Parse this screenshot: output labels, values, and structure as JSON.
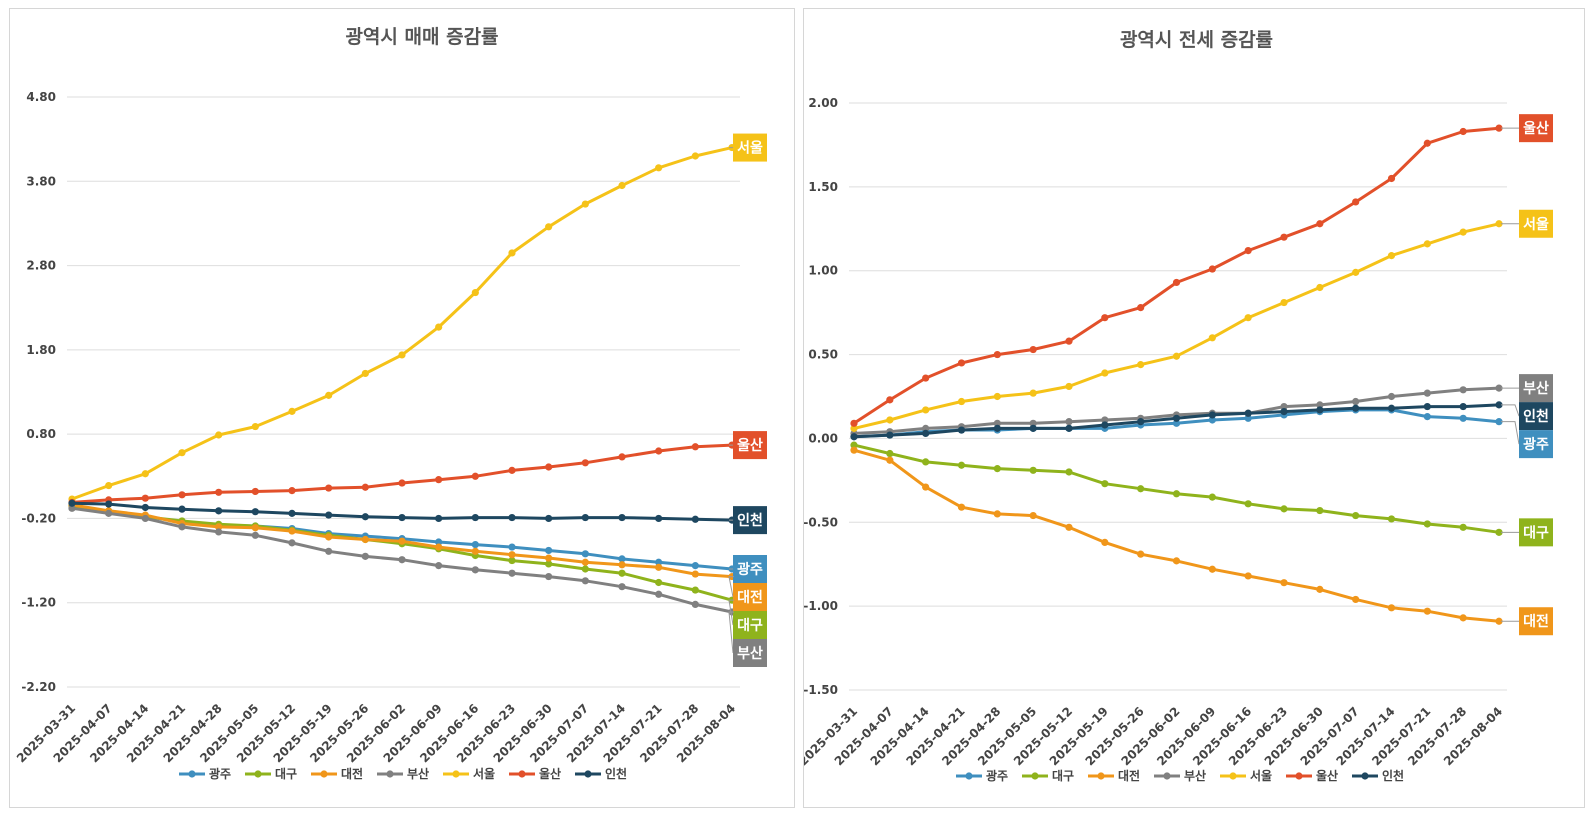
{
  "chart_data": [
    {
      "type": "line",
      "title": "광역시 매매 증감률",
      "xlabel": "",
      "ylabel": "",
      "ylim": [
        -2.2,
        5.4
      ],
      "yticks": [
        "4.80",
        "3.80",
        "2.80",
        "1.80",
        "0.80",
        "-0.20",
        "-1.20",
        "-2.20"
      ],
      "ytick_values": [
        4.8,
        3.8,
        2.8,
        1.8,
        0.8,
        -0.2,
        -1.2,
        -2.2
      ],
      "categories": [
        "2025-03-31",
        "2025-04-07",
        "2025-04-14",
        "2025-04-21",
        "2025-04-28",
        "2025-05-05",
        "2025-05-12",
        "2025-05-19",
        "2025-05-26",
        "2025-06-02",
        "2025-06-09",
        "2025-06-16",
        "2025-06-23",
        "2025-06-30",
        "2025-07-07",
        "2025-07-14",
        "2025-07-21",
        "2025-07-28",
        "2025-08-04"
      ],
      "grid": true,
      "legend_position": "bottom",
      "series": [
        {
          "name": "광주",
          "color": "#3f8fbf",
          "values": [
            -0.05,
            -0.12,
            -0.18,
            -0.24,
            -0.28,
            -0.29,
            -0.32,
            -0.38,
            -0.41,
            -0.44,
            -0.48,
            -0.51,
            -0.54,
            -0.58,
            -0.62,
            -0.68,
            -0.72,
            -0.76,
            -0.8
          ]
        },
        {
          "name": "대구",
          "color": "#8fb31c",
          "values": [
            -0.05,
            -0.12,
            -0.18,
            -0.23,
            -0.27,
            -0.29,
            -0.34,
            -0.4,
            -0.45,
            -0.5,
            -0.56,
            -0.64,
            -0.7,
            -0.74,
            -0.8,
            -0.85,
            -0.96,
            -1.05,
            -1.17
          ]
        },
        {
          "name": "대전",
          "color": "#f0961a",
          "values": [
            -0.04,
            -0.11,
            -0.16,
            -0.26,
            -0.3,
            -0.31,
            -0.35,
            -0.42,
            -0.45,
            -0.47,
            -0.54,
            -0.59,
            -0.63,
            -0.67,
            -0.72,
            -0.75,
            -0.78,
            -0.86,
            -0.89
          ]
        },
        {
          "name": "부산",
          "color": "#808080",
          "values": [
            -0.08,
            -0.14,
            -0.2,
            -0.3,
            -0.36,
            -0.4,
            -0.49,
            -0.59,
            -0.65,
            -0.69,
            -0.76,
            -0.81,
            -0.85,
            -0.89,
            -0.94,
            -1.01,
            -1.1,
            -1.22,
            -1.31
          ]
        },
        {
          "name": "서울",
          "color": "#f5c218",
          "values": [
            0.03,
            0.19,
            0.33,
            0.58,
            0.79,
            0.89,
            1.07,
            1.26,
            1.52,
            1.74,
            2.07,
            2.48,
            2.95,
            3.26,
            3.53,
            3.75,
            3.96,
            4.1,
            4.2
          ]
        },
        {
          "name": "울산",
          "color": "#e2502a",
          "values": [
            -0.01,
            0.02,
            0.04,
            0.08,
            0.11,
            0.12,
            0.13,
            0.16,
            0.17,
            0.22,
            0.26,
            0.3,
            0.37,
            0.41,
            0.46,
            0.53,
            0.6,
            0.65,
            0.67
          ]
        },
        {
          "name": "인천",
          "color": "#1e4760",
          "values": [
            -0.02,
            -0.03,
            -0.07,
            -0.09,
            -0.11,
            -0.12,
            -0.14,
            -0.16,
            -0.18,
            -0.19,
            -0.2,
            -0.19,
            -0.19,
            -0.2,
            -0.19,
            -0.19,
            -0.2,
            -0.21,
            -0.22
          ]
        }
      ],
      "end_labels": [
        {
          "text": "서울",
          "color": "#f5c218",
          "value": 4.2
        },
        {
          "text": "울산",
          "color": "#e2502a",
          "value": 0.67
        },
        {
          "text": "인천",
          "color": "#1e4760",
          "value": -0.22
        },
        {
          "text": "광주",
          "color": "#3f8fbf",
          "value": -0.8
        },
        {
          "text": "대전",
          "color": "#f0961a",
          "value": -0.89
        },
        {
          "text": "대구",
          "color": "#8fb31c",
          "value": -1.17
        },
        {
          "text": "부산",
          "color": "#808080",
          "value": -1.31
        }
      ]
    },
    {
      "type": "line",
      "title": "광역시 전세 증감률",
      "xlabel": "",
      "ylabel": "",
      "ylim": [
        -1.5,
        2.2
      ],
      "yticks": [
        "2.00",
        "1.50",
        "1.00",
        "0.50",
        "0.00",
        "-0.50",
        "-1.00",
        "-1.50"
      ],
      "ytick_values": [
        2.0,
        1.5,
        1.0,
        0.5,
        0.0,
        -0.5,
        -1.0,
        -1.5
      ],
      "categories": [
        "2025-03-31",
        "2025-04-07",
        "2025-04-14",
        "2025-04-21",
        "2025-04-28",
        "2025-05-05",
        "2025-05-12",
        "2025-05-19",
        "2025-05-26",
        "2025-06-02",
        "2025-06-09",
        "2025-06-16",
        "2025-06-23",
        "2025-06-30",
        "2025-07-07",
        "2025-07-14",
        "2025-07-21",
        "2025-07-28",
        "2025-08-04"
      ],
      "grid": true,
      "legend_position": "bottom",
      "series": [
        {
          "name": "광주",
          "color": "#3f8fbf",
          "values": [
            0.01,
            0.02,
            0.04,
            0.05,
            0.05,
            0.06,
            0.06,
            0.06,
            0.08,
            0.09,
            0.11,
            0.12,
            0.14,
            0.16,
            0.17,
            0.17,
            0.13,
            0.12,
            0.1
          ]
        },
        {
          "name": "대구",
          "color": "#8fb31c",
          "values": [
            -0.04,
            -0.09,
            -0.14,
            -0.16,
            -0.18,
            -0.19,
            -0.2,
            -0.27,
            -0.3,
            -0.33,
            -0.35,
            -0.39,
            -0.42,
            -0.43,
            -0.46,
            -0.48,
            -0.51,
            -0.53,
            -0.56
          ]
        },
        {
          "name": "대전",
          "color": "#f0961a",
          "values": [
            -0.07,
            -0.13,
            -0.29,
            -0.41,
            -0.45,
            -0.46,
            -0.53,
            -0.62,
            -0.69,
            -0.73,
            -0.78,
            -0.82,
            -0.86,
            -0.9,
            -0.96,
            -1.01,
            -1.03,
            -1.07,
            -1.09
          ]
        },
        {
          "name": "부산",
          "color": "#808080",
          "values": [
            0.03,
            0.04,
            0.06,
            0.07,
            0.09,
            0.09,
            0.1,
            0.11,
            0.12,
            0.14,
            0.15,
            0.15,
            0.19,
            0.2,
            0.22,
            0.25,
            0.27,
            0.29,
            0.3
          ]
        },
        {
          "name": "서울",
          "color": "#f5c218",
          "values": [
            0.06,
            0.11,
            0.17,
            0.22,
            0.25,
            0.27,
            0.31,
            0.39,
            0.44,
            0.49,
            0.6,
            0.72,
            0.81,
            0.9,
            0.99,
            1.09,
            1.16,
            1.23,
            1.28
          ]
        },
        {
          "name": "울산",
          "color": "#e2502a",
          "values": [
            0.09,
            0.23,
            0.36,
            0.45,
            0.5,
            0.53,
            0.58,
            0.72,
            0.78,
            0.93,
            1.01,
            1.12,
            1.2,
            1.28,
            1.41,
            1.55,
            1.76,
            1.83,
            1.85
          ]
        },
        {
          "name": "인천",
          "color": "#1e4760",
          "values": [
            0.01,
            0.02,
            0.03,
            0.05,
            0.06,
            0.06,
            0.06,
            0.08,
            0.1,
            0.12,
            0.14,
            0.15,
            0.16,
            0.17,
            0.18,
            0.18,
            0.19,
            0.19,
            0.2
          ]
        }
      ],
      "end_labels": [
        {
          "text": "울산",
          "color": "#e2502a",
          "value": 1.85
        },
        {
          "text": "서울",
          "color": "#f5c218",
          "value": 1.28
        },
        {
          "text": "부산",
          "color": "#808080",
          "value": 0.3
        },
        {
          "text": "인천",
          "color": "#1e4760",
          "value": 0.2
        },
        {
          "text": "광주",
          "color": "#3f8fbf",
          "value": 0.1
        },
        {
          "text": "대구",
          "color": "#8fb31c",
          "value": -0.56
        },
        {
          "text": "대전",
          "color": "#f0961a",
          "value": -1.09
        }
      ]
    }
  ]
}
